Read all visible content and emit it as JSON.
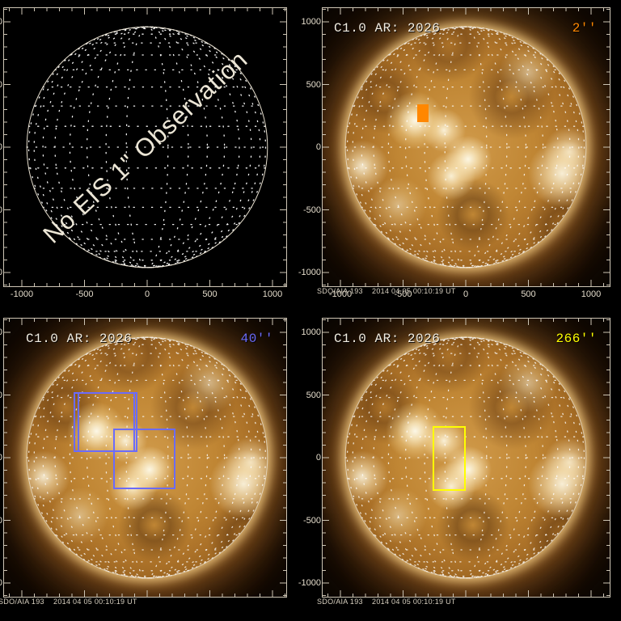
{
  "colors": {
    "background": "#000000",
    "frame": "#cdc5b5",
    "tick_label": "#e4dccb",
    "title_text": "#f2ede2",
    "caption_text": "#d8d0c0",
    "grid_dots": "#ffffff",
    "orange": "#ff8700",
    "blue": "#6b6bfa",
    "yellow": "#ffff00"
  },
  "axis": {
    "x_tick_values": [
      -1000,
      -500,
      0,
      500,
      1000
    ],
    "x_tick_labels": [
      "-1000",
      "-500",
      "0",
      "500",
      "1000"
    ],
    "y_tick_values": [
      1000,
      500,
      0,
      -500,
      -1000
    ],
    "y_tick_labels": [
      "1000",
      "500",
      "0",
      "-500",
      "-1000"
    ],
    "minor_tick_step_arcsec": 100,
    "solar_radius_arcsec": 960,
    "grid_spacing_deg": 10
  },
  "chart_data": [
    {
      "type": "scatter",
      "panel": "top-left",
      "title": "",
      "scale_label": "",
      "scale_color": "",
      "overlay_text": "No EIS 1\" Observation",
      "sun_image": false,
      "caption": "",
      "show_x_labels": true,
      "xlim": [
        -1142,
        1110
      ],
      "ylim": [
        -1110,
        1110
      ],
      "fov_regions": []
    },
    {
      "type": "scatter",
      "panel": "top-right",
      "title": "C1.0 AR: 2026",
      "scale_label": "2''",
      "scale_color": "#ff8700",
      "overlay_text": "",
      "sun_image": true,
      "caption": "SDO/AIA 193    2014 04 05 00:10:19 UT",
      "show_x_labels": true,
      "xlim": [
        -1142,
        1148
      ],
      "ylim": [
        -1110,
        1110
      ],
      "fov_regions": [
        {
          "shape": "rect",
          "fill": true,
          "color": "#ff8700",
          "x_arcsec": [
            -387,
            -297
          ],
          "y_arcsec": [
            200,
            342
          ]
        }
      ]
    },
    {
      "type": "scatter",
      "panel": "bottom-left",
      "title": "C1.0 AR: 2026",
      "scale_label": "40''",
      "scale_color": "#6b6bfa",
      "overlay_text": "",
      "sun_image": true,
      "caption": "SDO/AIA 193    2014 04 05 00:10:19 UT",
      "show_x_labels": false,
      "xlim": [
        -1142,
        1110
      ],
      "ylim": [
        -1110,
        1110
      ],
      "fov_regions": [
        {
          "shape": "rect",
          "fill": false,
          "color": "#6b6bfa",
          "x_arcsec": [
            -587,
            -95
          ],
          "y_arcsec": [
            45,
            523
          ]
        },
        {
          "shape": "rect",
          "fill": false,
          "color": "#6b6bfa",
          "x_arcsec": [
            -555,
            -77
          ],
          "y_arcsec": [
            45,
            523
          ]
        },
        {
          "shape": "rect",
          "fill": false,
          "color": "#6b6bfa",
          "x_arcsec": [
            -269,
            224
          ],
          "y_arcsec": [
            -252,
            232
          ]
        }
      ]
    },
    {
      "type": "scatter",
      "panel": "bottom-right",
      "title": "C1.0 AR: 2026",
      "scale_label": "266''",
      "scale_color": "#ffff00",
      "overlay_text": "",
      "sun_image": true,
      "caption": "SDO/AIA 193    2014 04 05 00:10:19 UT",
      "show_x_labels": false,
      "xlim": [
        -1142,
        1148
      ],
      "ylim": [
        -1110,
        1110
      ],
      "fov_regions": [
        {
          "shape": "rect",
          "fill": false,
          "color": "#ffff00",
          "x_arcsec": [
            -266,
            2
          ],
          "y_arcsec": [
            -263,
            252
          ]
        }
      ]
    }
  ]
}
